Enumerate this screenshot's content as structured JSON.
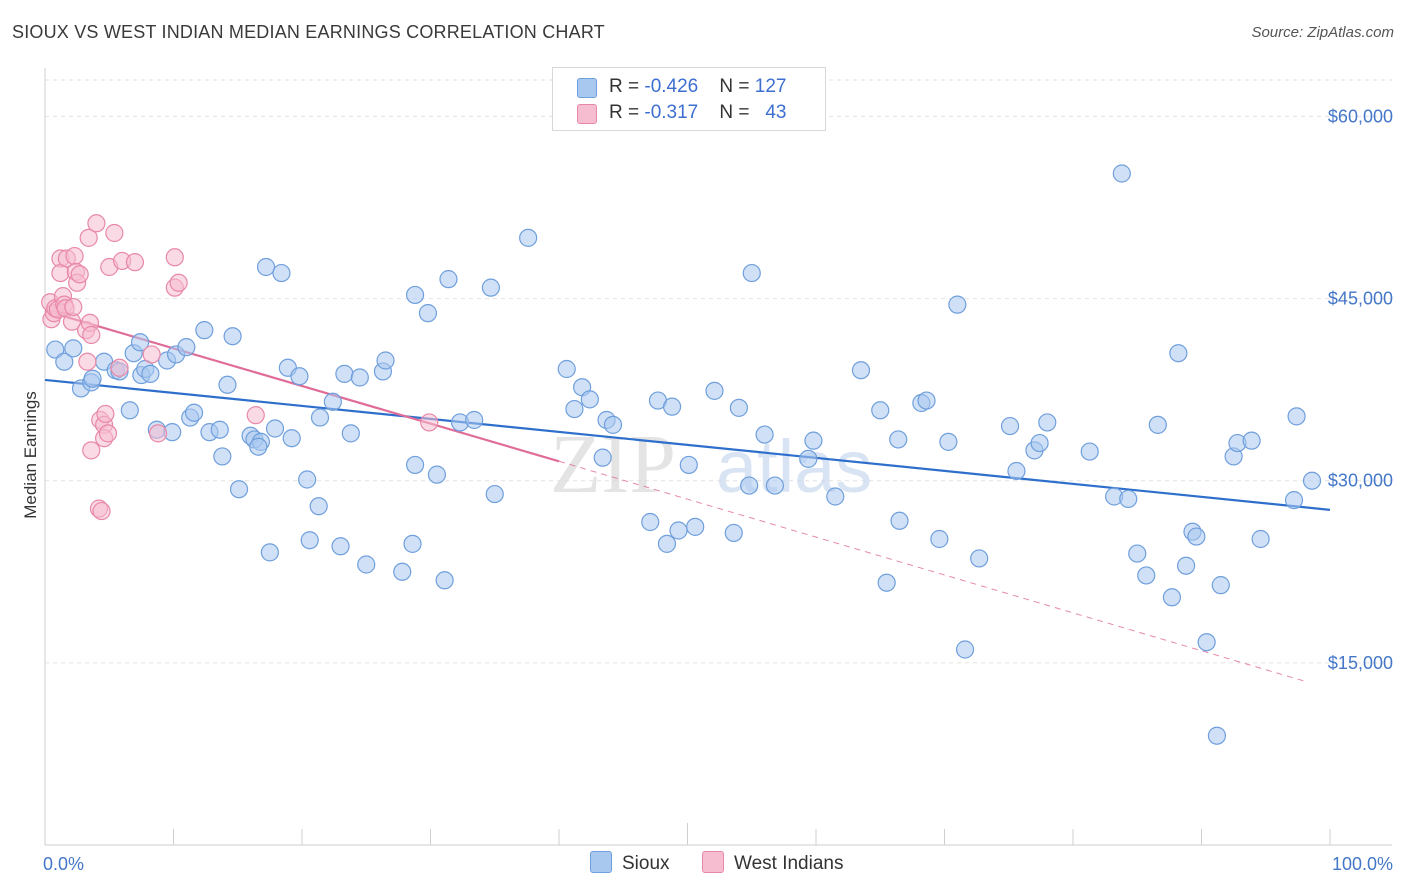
{
  "title": "SIOUX VS WEST INDIAN MEDIAN EARNINGS CORRELATION CHART",
  "source": "Source: ZipAtlas.com",
  "watermark": {
    "zip": "ZIP",
    "atlas": "atlas"
  },
  "legend": {
    "rows": [
      {
        "r_label": "R = ",
        "r_value": "-0.426",
        "n_label": "N = ",
        "n_value": "127",
        "color": "#a9c8f0",
        "border": "#6f9fdc"
      },
      {
        "r_label": "R = ",
        "r_value": "-0.317",
        "n_label": "N = ",
        "n_value": "43",
        "color": "#f6bcd0",
        "border": "#e888a8"
      }
    ]
  },
  "bottom_legend": [
    {
      "label": "Sioux",
      "color": "#a9c8f0",
      "border": "#6f9fdc"
    },
    {
      "label": "West Indians",
      "color": "#f6bcd0",
      "border": "#e888a8"
    }
  ],
  "chart_data": {
    "type": "scatter",
    "title": "SIOUX VS WEST INDIAN MEDIAN EARNINGS CORRELATION CHART",
    "xlabel": "",
    "ylabel": "Median Earnings",
    "xlim": [
      0,
      100
    ],
    "ylim": [
      0,
      63000
    ],
    "x_tick_labels": [
      "0.0%",
      "100.0%"
    ],
    "y_ticks": [
      15000,
      30000,
      45000,
      60000
    ],
    "y_tick_labels": [
      "$15,000",
      "$30,000",
      "$45,000",
      "$60,000"
    ],
    "grid": true,
    "series": [
      {
        "name": "Sioux",
        "color": "#a9c8f0",
        "stroke": "#6f9fdc",
        "trend": {
          "x0": 0,
          "y0": 38300,
          "x1": 100,
          "y1": 27600,
          "color": "#2f6fcc"
        },
        "points": [
          [
            0.8,
            40800
          ],
          [
            1.5,
            39800
          ],
          [
            2.2,
            40900
          ],
          [
            2.8,
            37600
          ],
          [
            3.6,
            38100
          ],
          [
            3.7,
            38400
          ],
          [
            4.6,
            39800
          ],
          [
            5.5,
            39100
          ],
          [
            5.8,
            39000
          ],
          [
            6.6,
            35800
          ],
          [
            6.9,
            40500
          ],
          [
            7.4,
            41400
          ],
          [
            7.5,
            38700
          ],
          [
            7.8,
            39200
          ],
          [
            8.2,
            38800
          ],
          [
            8.7,
            34200
          ],
          [
            9.5,
            39900
          ],
          [
            9.9,
            34000
          ],
          [
            10.2,
            40400
          ],
          [
            11.0,
            41000
          ],
          [
            11.3,
            35200
          ],
          [
            11.6,
            35600
          ],
          [
            12.4,
            42400
          ],
          [
            12.8,
            34000
          ],
          [
            13.6,
            34200
          ],
          [
            13.8,
            32000
          ],
          [
            14.2,
            37900
          ],
          [
            14.6,
            41900
          ],
          [
            15.1,
            29300
          ],
          [
            16.0,
            33700
          ],
          [
            16.3,
            33400
          ],
          [
            16.8,
            33200
          ],
          [
            16.6,
            32800
          ],
          [
            17.2,
            47600
          ],
          [
            17.5,
            24100
          ],
          [
            17.9,
            34300
          ],
          [
            18.4,
            47100
          ],
          [
            18.9,
            39300
          ],
          [
            19.2,
            33500
          ],
          [
            19.8,
            38600
          ],
          [
            20.4,
            30100
          ],
          [
            20.6,
            25100
          ],
          [
            21.3,
            27900
          ],
          [
            21.4,
            35200
          ],
          [
            22.4,
            36500
          ],
          [
            23.0,
            24600
          ],
          [
            23.3,
            38800
          ],
          [
            23.8,
            33900
          ],
          [
            24.5,
            38500
          ],
          [
            25.0,
            23100
          ],
          [
            26.3,
            39000
          ],
          [
            26.5,
            39900
          ],
          [
            27.8,
            22500
          ],
          [
            28.6,
            24800
          ],
          [
            28.8,
            31300
          ],
          [
            28.8,
            45300
          ],
          [
            29.8,
            43800
          ],
          [
            30.5,
            30500
          ],
          [
            31.1,
            21800
          ],
          [
            31.4,
            46600
          ],
          [
            32.3,
            34800
          ],
          [
            33.4,
            35000
          ],
          [
            34.7,
            45900
          ],
          [
            35.0,
            28900
          ],
          [
            37.6,
            50000
          ],
          [
            40.6,
            39200
          ],
          [
            41.2,
            35900
          ],
          [
            41.8,
            37700
          ],
          [
            42.4,
            36700
          ],
          [
            43.4,
            31900
          ],
          [
            43.7,
            35000
          ],
          [
            44.2,
            34600
          ],
          [
            47.1,
            26600
          ],
          [
            47.7,
            36600
          ],
          [
            48.4,
            24800
          ],
          [
            48.8,
            36100
          ],
          [
            49.3,
            25900
          ],
          [
            50.1,
            31300
          ],
          [
            50.6,
            26200
          ],
          [
            52.1,
            37400
          ],
          [
            53.6,
            25700
          ],
          [
            54.0,
            36000
          ],
          [
            54.8,
            29600
          ],
          [
            55.0,
            47100
          ],
          [
            56.0,
            33800
          ],
          [
            56.8,
            29600
          ],
          [
            59.4,
            31800
          ],
          [
            59.8,
            33300
          ],
          [
            61.5,
            28700
          ],
          [
            63.5,
            39100
          ],
          [
            65.0,
            35800
          ],
          [
            65.5,
            21600
          ],
          [
            66.4,
            33400
          ],
          [
            66.5,
            26700
          ],
          [
            68.2,
            36400
          ],
          [
            68.6,
            36600
          ],
          [
            69.6,
            25200
          ],
          [
            70.3,
            33200
          ],
          [
            71.0,
            44500
          ],
          [
            71.6,
            16100
          ],
          [
            72.7,
            23600
          ],
          [
            75.1,
            34500
          ],
          [
            75.6,
            30800
          ],
          [
            77.0,
            32500
          ],
          [
            77.4,
            33100
          ],
          [
            78.0,
            34800
          ],
          [
            81.3,
            32400
          ],
          [
            83.2,
            28700
          ],
          [
            83.8,
            55300
          ],
          [
            84.3,
            28500
          ],
          [
            85.0,
            24000
          ],
          [
            85.7,
            22200
          ],
          [
            86.6,
            34600
          ],
          [
            87.7,
            20400
          ],
          [
            88.2,
            40500
          ],
          [
            88.8,
            23000
          ],
          [
            89.3,
            25800
          ],
          [
            89.6,
            25400
          ],
          [
            90.4,
            16700
          ],
          [
            91.2,
            9000
          ],
          [
            91.5,
            21400
          ],
          [
            92.5,
            32000
          ],
          [
            92.8,
            33100
          ],
          [
            93.9,
            33300
          ],
          [
            94.6,
            25200
          ],
          [
            97.2,
            28400
          ],
          [
            97.4,
            35300
          ],
          [
            98.6,
            30000
          ]
        ]
      },
      {
        "name": "West Indians",
        "color": "#f6bcd0",
        "stroke": "#e888a8",
        "trend": {
          "x0": 0,
          "y0": 44000,
          "x1": 40,
          "y1": 31600,
          "dash_x1": 98,
          "dash_y1": 13500,
          "color": "#e06c98"
        },
        "points": [
          [
            0.4,
            44700
          ],
          [
            0.5,
            43300
          ],
          [
            0.7,
            43800
          ],
          [
            0.8,
            44200
          ],
          [
            1.0,
            44100
          ],
          [
            1.2,
            48300
          ],
          [
            1.2,
            47100
          ],
          [
            1.4,
            45200
          ],
          [
            1.5,
            44500
          ],
          [
            1.6,
            44200
          ],
          [
            1.7,
            48300
          ],
          [
            2.1,
            43100
          ],
          [
            2.2,
            44300
          ],
          [
            2.3,
            48500
          ],
          [
            2.4,
            47200
          ],
          [
            2.5,
            46300
          ],
          [
            2.7,
            47000
          ],
          [
            3.2,
            42400
          ],
          [
            3.3,
            39800
          ],
          [
            3.4,
            50000
          ],
          [
            3.5,
            43000
          ],
          [
            3.6,
            42000
          ],
          [
            3.6,
            32500
          ],
          [
            4.0,
            51200
          ],
          [
            4.2,
            27700
          ],
          [
            4.3,
            35000
          ],
          [
            4.4,
            27500
          ],
          [
            4.6,
            34600
          ],
          [
            4.6,
            33500
          ],
          [
            4.7,
            35500
          ],
          [
            4.9,
            33900
          ],
          [
            5.0,
            47600
          ],
          [
            5.4,
            50400
          ],
          [
            5.8,
            39300
          ],
          [
            6.0,
            48100
          ],
          [
            7.0,
            48000
          ],
          [
            8.3,
            40400
          ],
          [
            8.8,
            33900
          ],
          [
            10.1,
            45900
          ],
          [
            10.1,
            48400
          ],
          [
            10.4,
            46300
          ],
          [
            16.4,
            35400
          ],
          [
            29.9,
            34800
          ]
        ]
      }
    ]
  }
}
